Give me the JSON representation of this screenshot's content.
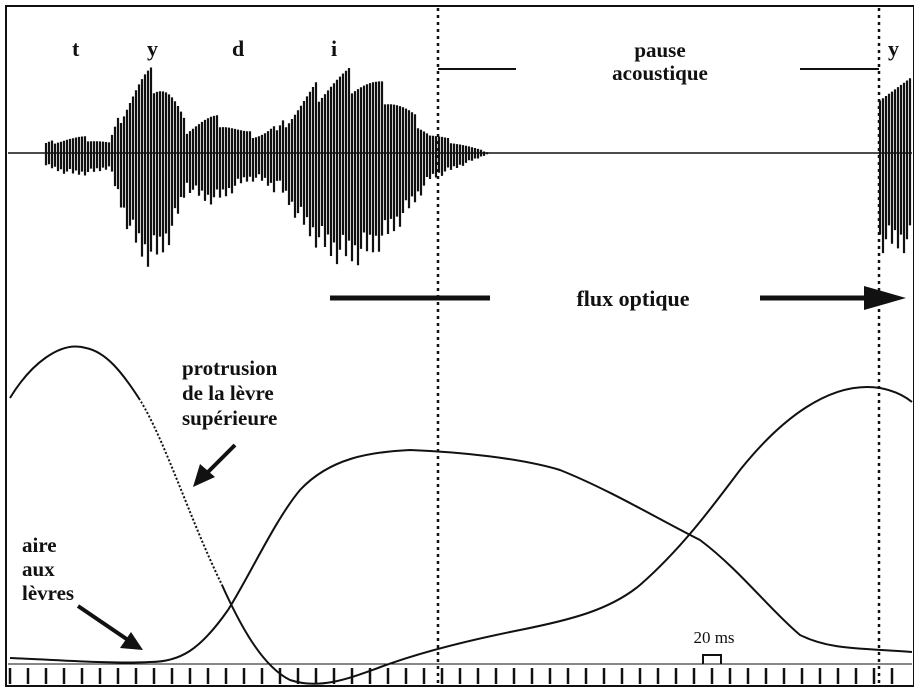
{
  "labels": {
    "phonemes": [
      "t",
      "y",
      "d",
      "i",
      "y"
    ],
    "pause_line1": "pause",
    "pause_line2": "acoustique",
    "flux": "flux optique",
    "protrusion_line1": "protrusion",
    "protrusion_line2": "de la lèvre",
    "protrusion_line3": "supérieure",
    "aire_line1": "aire",
    "aire_line2": "aux",
    "aire_line3": "lèvres",
    "scale": "20 ms"
  },
  "colors": {
    "ink": "#111111",
    "background": "#ffffff"
  }
}
